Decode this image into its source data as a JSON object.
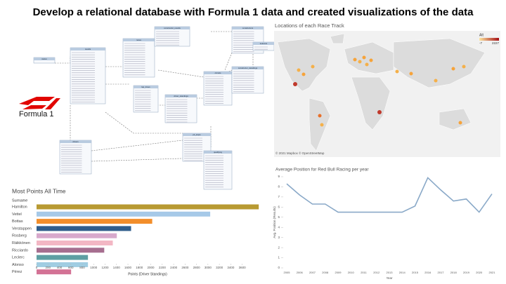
{
  "title": "Develop a relational database with Formula 1 data and created visualizations of the data",
  "logo_text": "Formula 1",
  "diagram": {
    "nodes": [
      {
        "label": "status"
      },
      {
        "label": "results"
      },
      {
        "label": "races"
      },
      {
        "label": "constructor_results"
      },
      {
        "label": "constructors"
      },
      {
        "label": "lap_times"
      },
      {
        "label": "driver_standings"
      },
      {
        "label": "drivers"
      },
      {
        "label": "pit_stops"
      },
      {
        "label": "qualifying"
      },
      {
        "label": "circuits"
      },
      {
        "label": "constructor_standings"
      },
      {
        "label": "seasons"
      }
    ]
  },
  "map": {
    "title": "Locations of each Race Track",
    "legend_title": "Alt",
    "legend_min": -7,
    "legend_max": 2227,
    "credit": "© 2021 Mapbox © OpenStreetMap"
  },
  "chart_data": [
    {
      "type": "hbar",
      "title": "Most Points All Time",
      "category_header": "Surname",
      "x_label": "Points (Driver Standings)",
      "categories": [
        "Hamilton",
        "Vettel",
        "Bottas",
        "Verstappen",
        "Rosberg",
        "Räikkönen",
        "Ricciardo",
        "Leclerc",
        "Alonso",
        "Pérez"
      ],
      "values": [
        3890,
        3040,
        2025,
        1655,
        1405,
        1335,
        1185,
        900,
        900,
        605
      ],
      "colors": [
        "#b89a32",
        "#a6c9e8",
        "#f28e2b",
        "#2f5d8c",
        "#d7a9cc",
        "#f3b7c4",
        "#a66e8f",
        "#5e9fa3",
        "#a0cde2",
        "#d37295"
      ],
      "xlim": [
        0,
        3900
      ],
      "xticks": [
        0,
        200,
        400,
        600,
        800,
        1000,
        1200,
        1400,
        1600,
        1800,
        2000,
        2200,
        2400,
        2600,
        2800,
        3000,
        3200,
        3400,
        3600
      ]
    },
    {
      "type": "line",
      "title": "Average Position for Red Bull Racing per year",
      "x_label": "Year",
      "y_label": "Avg. Position (Results)",
      "categories": [
        "2005",
        "2006",
        "2007",
        "2008",
        "2009",
        "2010",
        "2011",
        "2012",
        "2013",
        "2014",
        "2015",
        "2016",
        "2017",
        "2018",
        "2019",
        "2020",
        "2021"
      ],
      "series": [
        {
          "color": "#8aa9c8",
          "values": [
            8.3,
            7.2,
            6.3,
            6.3,
            5.5,
            5.5,
            5.5,
            5.5,
            5.5,
            5.5,
            6.1,
            8.9,
            7.7,
            6.6,
            6.8,
            5.5,
            7.3
          ]
        }
      ],
      "ylim": [
        0,
        9
      ],
      "yticks": [
        0,
        1,
        2,
        3,
        4,
        5,
        6,
        7,
        8,
        9
      ]
    }
  ]
}
